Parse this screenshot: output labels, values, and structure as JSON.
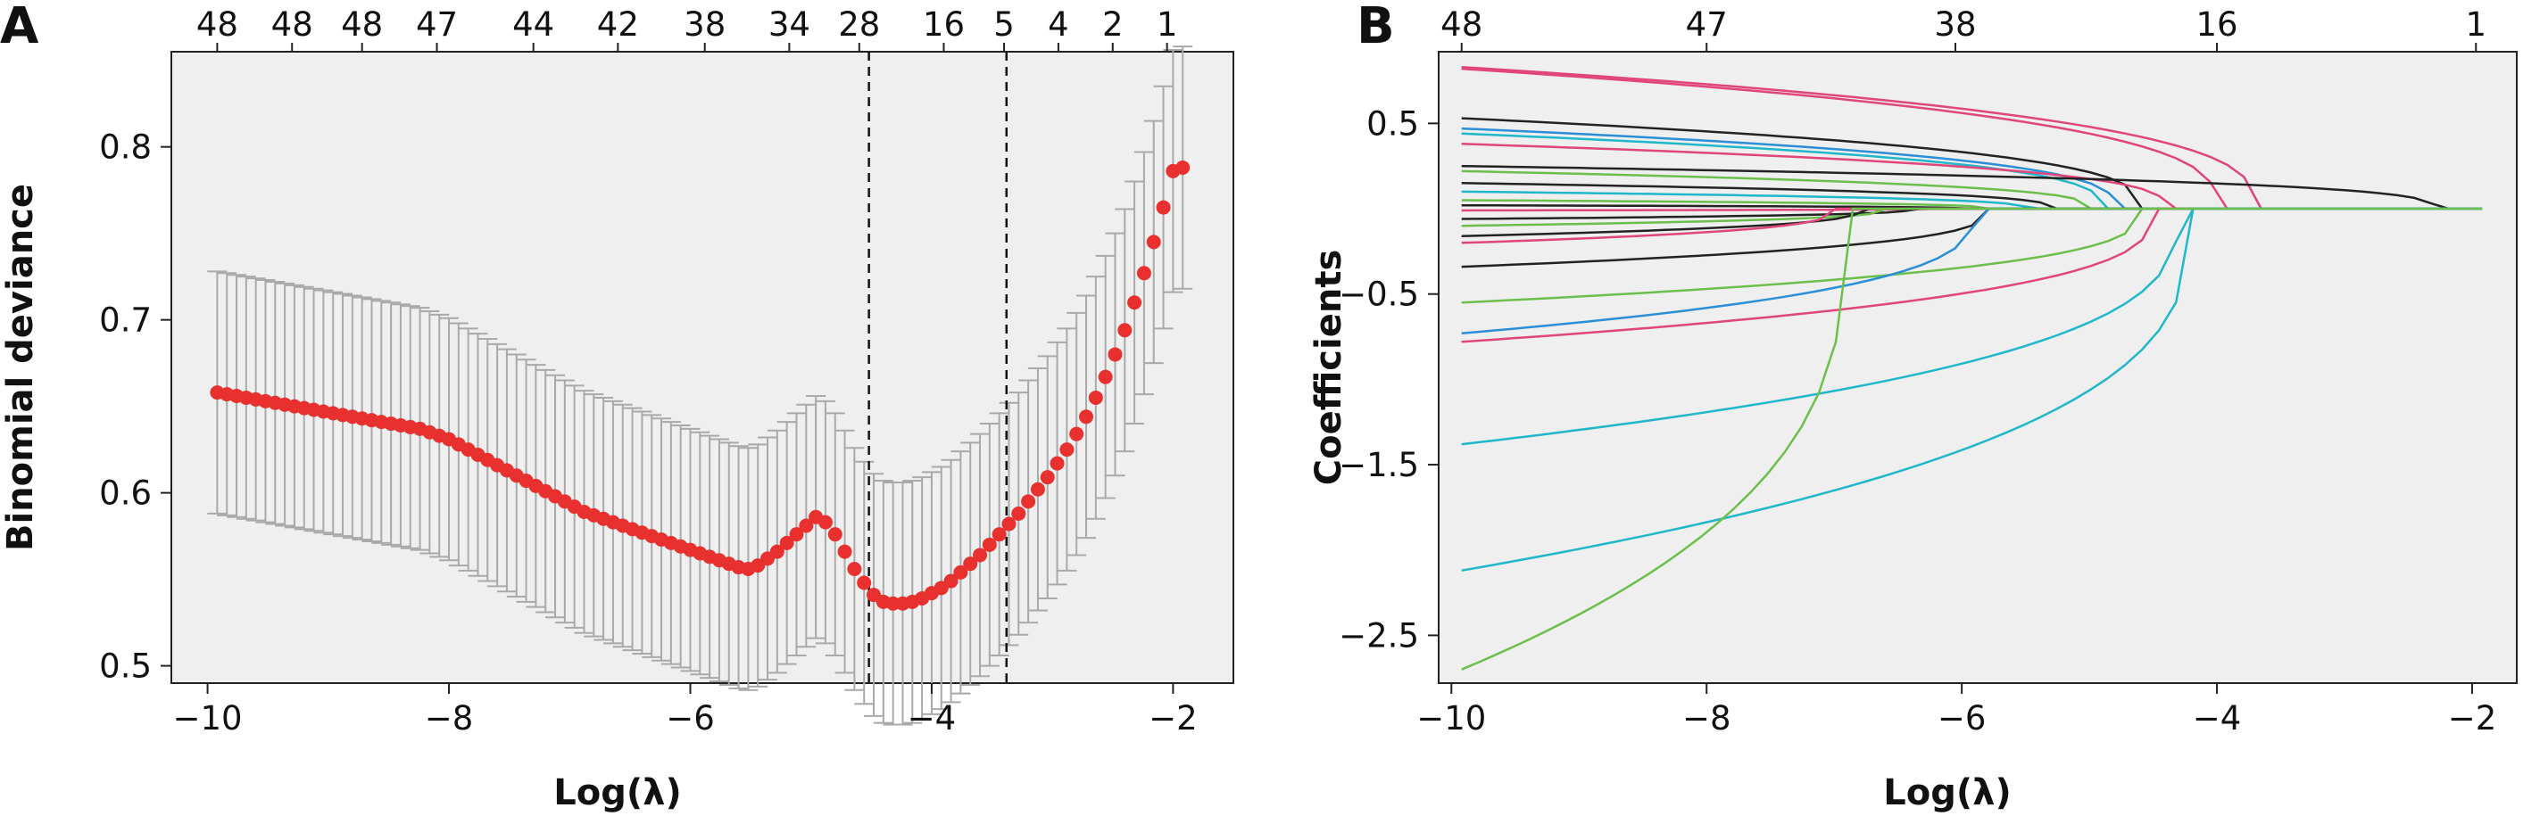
{
  "chart_data": [
    {
      "panel_label": "A",
      "type": "scatter",
      "xlabel": "Log(λ)",
      "ylabel": "Binomial deviance",
      "xlim": [
        -10.3,
        -1.5
      ],
      "ylim": [
        0.49,
        0.855
      ],
      "xticks": [
        -10,
        -8,
        -6,
        -4,
        -2
      ],
      "xtick_labels": [
        "−10",
        "−8",
        "−6",
        "−4",
        "−2"
      ],
      "yticks": [
        0.5,
        0.6,
        0.7,
        0.8
      ],
      "ytick_labels": [
        "0.5",
        "0.6",
        "0.7",
        "0.8"
      ],
      "top_axis": {
        "positions": [
          -9.92,
          -9.3,
          -8.72,
          -8.1,
          -7.3,
          -6.6,
          -5.88,
          -5.18,
          -4.6,
          -3.9,
          -3.4,
          -2.95,
          -2.5,
          -2.05
        ],
        "labels": [
          "48",
          "48",
          "48",
          "47",
          "44",
          "42",
          "38",
          "34",
          "28",
          "16",
          "5",
          "4",
          "2",
          "1"
        ]
      },
      "vlines": [
        -4.52,
        -3.38
      ],
      "grid": false,
      "series": [
        {
          "x": [
            -9.92,
            -9.84,
            -9.76,
            -9.68,
            -9.6,
            -9.52,
            -9.44,
            -9.36,
            -9.28,
            -9.2,
            -9.12,
            -9.04,
            -8.96,
            -8.88,
            -8.8,
            -8.72,
            -8.64,
            -8.56,
            -8.48,
            -8.4,
            -8.32,
            -8.24,
            -8.16,
            -8.08,
            -8.0,
            -7.92,
            -7.84,
            -7.76,
            -7.68,
            -7.6,
            -7.52,
            -7.44,
            -7.36,
            -7.28,
            -7.2,
            -7.12,
            -7.04,
            -6.96,
            -6.88,
            -6.8,
            -6.72,
            -6.64,
            -6.56,
            -6.48,
            -6.4,
            -6.32,
            -6.24,
            -6.16,
            -6.08,
            -6.0,
            -5.92,
            -5.84,
            -5.76,
            -5.68,
            -5.6,
            -5.52,
            -5.44,
            -5.36,
            -5.28,
            -5.2,
            -5.12,
            -5.04,
            -4.96,
            -4.88,
            -4.8,
            -4.72,
            -4.64,
            -4.56,
            -4.48,
            -4.4,
            -4.32,
            -4.24,
            -4.16,
            -4.08,
            -4.0,
            -3.92,
            -3.84,
            -3.76,
            -3.68,
            -3.6,
            -3.52,
            -3.44,
            -3.36,
            -3.28,
            -3.2,
            -3.12,
            -3.04,
            -2.96,
            -2.88,
            -2.8,
            -2.72,
            -2.64,
            -2.56,
            -2.48,
            -2.4,
            -2.32,
            -2.24,
            -2.16,
            -2.08,
            -2.0,
            -1.92
          ],
          "y": [
            0.658,
            0.657,
            0.656,
            0.655,
            0.654,
            0.653,
            0.652,
            0.651,
            0.65,
            0.649,
            0.648,
            0.647,
            0.646,
            0.645,
            0.644,
            0.643,
            0.642,
            0.641,
            0.64,
            0.639,
            0.638,
            0.637,
            0.635,
            0.633,
            0.631,
            0.628,
            0.625,
            0.622,
            0.619,
            0.616,
            0.613,
            0.61,
            0.607,
            0.604,
            0.601,
            0.598,
            0.595,
            0.592,
            0.589,
            0.587,
            0.585,
            0.583,
            0.581,
            0.579,
            0.577,
            0.575,
            0.573,
            0.571,
            0.569,
            0.567,
            0.565,
            0.563,
            0.561,
            0.559,
            0.557,
            0.556,
            0.558,
            0.562,
            0.566,
            0.571,
            0.576,
            0.581,
            0.586,
            0.583,
            0.576,
            0.566,
            0.556,
            0.548,
            0.541,
            0.537,
            0.536,
            0.536,
            0.537,
            0.539,
            0.542,
            0.545,
            0.549,
            0.554,
            0.559,
            0.564,
            0.57,
            0.576,
            0.582,
            0.588,
            0.595,
            0.602,
            0.609,
            0.617,
            0.625,
            0.634,
            0.644,
            0.655,
            0.667,
            0.68,
            0.694,
            0.71,
            0.727,
            0.745,
            0.765,
            0.786,
            0.788
          ],
          "error": 0.07
        }
      ]
    },
    {
      "panel_label": "B",
      "type": "line",
      "xlabel": "Log(λ)",
      "ylabel": "Coefficients",
      "xlim": [
        -10.1,
        -1.65
      ],
      "ylim": [
        -2.78,
        0.92
      ],
      "xticks": [
        -10,
        -8,
        -6,
        -4,
        -2
      ],
      "xtick_labels": [
        "−10",
        "−8",
        "−6",
        "−4",
        "−2"
      ],
      "yticks": [
        0.5,
        -0.5,
        -1.5,
        -2.5
      ],
      "ytick_labels": [
        "0.5",
        "−0.5",
        "−1.5",
        "−2.5"
      ],
      "top_axis": {
        "positions": [
          -9.92,
          -8.0,
          -6.05,
          -4.0,
          -1.97
        ],
        "labels": [
          "48",
          "47",
          "38",
          "16",
          "1"
        ]
      },
      "grid": false,
      "series": [
        {
          "color": "#e0457b",
          "start": 0.83,
          "end": -3.7
        },
        {
          "color": "#e0457b",
          "start": 0.82,
          "end": -4.0
        },
        {
          "color": "#222222",
          "start": 0.53,
          "end": -4.6
        },
        {
          "color": "#2a8fd6",
          "start": 0.47,
          "end": -4.8
        },
        {
          "color": "#1fb7c9",
          "start": 0.44,
          "end": -4.9
        },
        {
          "color": "#e0457b",
          "start": 0.38,
          "end": -4.4
        },
        {
          "color": "#222222",
          "start": 0.25,
          "end": -2.3
        },
        {
          "color": "#6cbf4b",
          "start": 0.22,
          "end": -5.0
        },
        {
          "color": "#222222",
          "start": 0.15,
          "end": -5.3
        },
        {
          "color": "#1fb7c9",
          "start": 0.1,
          "end": -5.5
        },
        {
          "color": "#6cbf4b",
          "start": 0.05,
          "end": -5.8
        },
        {
          "color": "#222222",
          "start": 0.02,
          "end": -6.0
        },
        {
          "color": "#e0457b",
          "start": -0.01,
          "end": -6.2
        },
        {
          "color": "#222222",
          "start": -0.06,
          "end": -6.4
        },
        {
          "color": "#6cbf4b",
          "start": -0.1,
          "end": -6.6
        },
        {
          "color": "#222222",
          "start": -0.16,
          "end": -6.8
        },
        {
          "color": "#e0457b",
          "start": -0.2,
          "end": -7.0
        },
        {
          "color": "#222222",
          "start": -0.34,
          "end": -5.8
        },
        {
          "color": "#6cbf4b",
          "start": -0.55,
          "end": -4.6
        },
        {
          "color": "#2a8fd6",
          "start": -0.73,
          "end": -5.9
        },
        {
          "color": "#e0457b",
          "start": -0.78,
          "end": -4.5
        },
        {
          "color": "#1fb7c9",
          "start": -1.38,
          "end": -4.3
        },
        {
          "color": "#1fb7c9",
          "start": -2.12,
          "end": -4.2
        },
        {
          "color": "#6cbf4b",
          "start": -2.7,
          "end": -6.9
        }
      ]
    }
  ]
}
